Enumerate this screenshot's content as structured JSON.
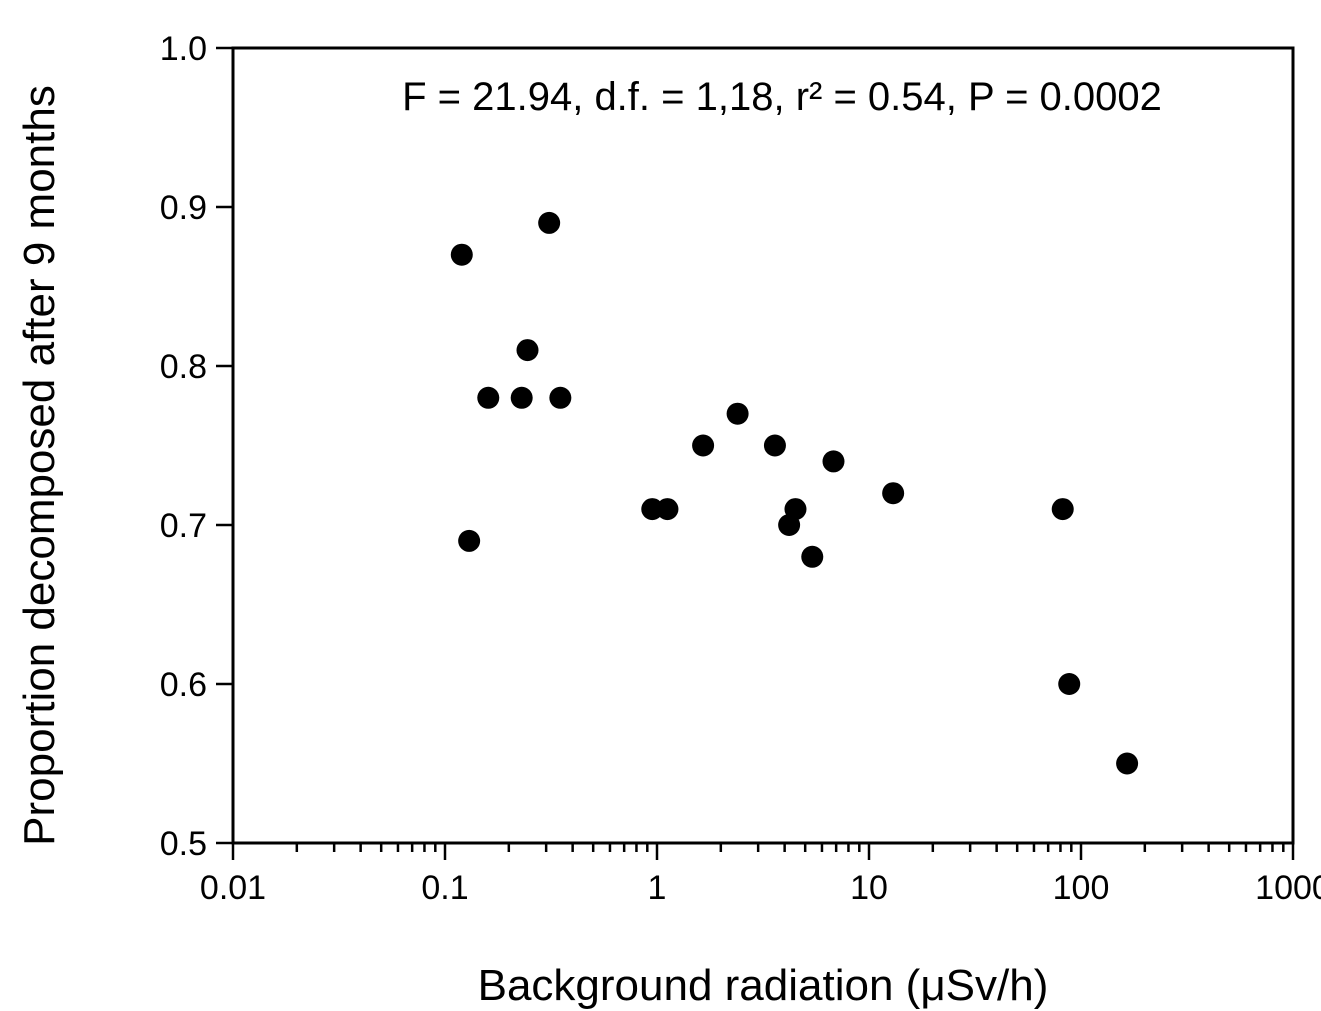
{
  "chart_data": {
    "type": "scatter",
    "title": "",
    "xlabel": "Background radiation (μSv/h)",
    "ylabel": "Proportion decomposed after 9 months",
    "xscale": "log",
    "xlim": [
      0.01,
      1000
    ],
    "ylim": [
      0.5,
      1.0
    ],
    "xticks": [
      0.01,
      0.1,
      1,
      10,
      100,
      1000
    ],
    "xtick_labels": [
      "0.01",
      "0.1",
      "1",
      "10",
      "100",
      "1000"
    ],
    "yticks": [
      0.5,
      0.6,
      0.7,
      0.8,
      0.9,
      1.0
    ],
    "ytick_labels": [
      "0.5",
      "0.6",
      "0.7",
      "0.8",
      "0.9",
      "1.0"
    ],
    "grid": false,
    "legend": "none",
    "annotation": "F = 21.94, d.f. = 1,18, r² = 0.54, P = 0.0002",
    "marker_color": "#000000",
    "points": [
      {
        "x": 0.12,
        "y": 0.87
      },
      {
        "x": 0.13,
        "y": 0.69
      },
      {
        "x": 0.16,
        "y": 0.78
      },
      {
        "x": 0.23,
        "y": 0.78
      },
      {
        "x": 0.245,
        "y": 0.81
      },
      {
        "x": 0.31,
        "y": 0.89
      },
      {
        "x": 0.35,
        "y": 0.78
      },
      {
        "x": 0.95,
        "y": 0.71
      },
      {
        "x": 1.12,
        "y": 0.71
      },
      {
        "x": 1.65,
        "y": 0.75
      },
      {
        "x": 2.4,
        "y": 0.77
      },
      {
        "x": 3.6,
        "y": 0.75
      },
      {
        "x": 4.2,
        "y": 0.7
      },
      {
        "x": 4.5,
        "y": 0.71
      },
      {
        "x": 5.4,
        "y": 0.68
      },
      {
        "x": 6.8,
        "y": 0.74
      },
      {
        "x": 13.0,
        "y": 0.72
      },
      {
        "x": 82.0,
        "y": 0.71
      },
      {
        "x": 88.0,
        "y": 0.6
      },
      {
        "x": 165.0,
        "y": 0.55
      }
    ]
  }
}
